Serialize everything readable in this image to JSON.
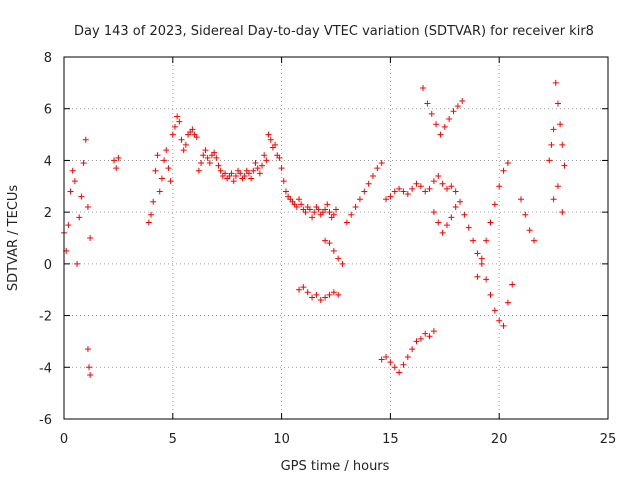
{
  "chart_data": {
    "type": "scatter",
    "title": "Day 143 of 2023, Sidereal Day-to-day VTEC variation (SDTVAR) for receiver kir8",
    "xlabel": "GPS time / hours",
    "ylabel": "SDTVAR / TECUs",
    "xlim": [
      0,
      25
    ],
    "ylim": [
      -6,
      8
    ],
    "x_ticks": [
      0,
      5,
      10,
      15,
      20,
      25
    ],
    "y_ticks": [
      -6,
      -4,
      -2,
      0,
      2,
      4,
      6,
      8
    ],
    "x_tick_labels": [
      "0",
      "5",
      "10",
      "15",
      "20",
      "25"
    ],
    "y_tick_labels": [
      "-6",
      "-4",
      "-2",
      "0",
      "2",
      "4",
      "6",
      "8"
    ],
    "grid": true,
    "marker": "+",
    "series_color": "#ff0000",
    "series": [
      {
        "name": "SDTVAR",
        "x": [
          0.0,
          0.1,
          0.2,
          0.3,
          0.4,
          0.5,
          0.6,
          0.7,
          0.8,
          0.9,
          1.0,
          1.1,
          1.2,
          1.1,
          1.15,
          1.2,
          2.3,
          2.4,
          2.5,
          3.9,
          4.0,
          4.1,
          4.2,
          4.3,
          4.4,
          4.5,
          4.6,
          4.7,
          4.8,
          4.9,
          5.0,
          5.1,
          5.2,
          5.3,
          5.4,
          5.5,
          5.6,
          5.7,
          5.8,
          5.9,
          6.0,
          6.1,
          6.2,
          6.3,
          6.4,
          6.5,
          6.6,
          6.7,
          6.8,
          6.9,
          7.0,
          7.1,
          7.2,
          7.3,
          7.4,
          7.5,
          7.6,
          7.7,
          7.8,
          7.9,
          8.0,
          8.1,
          8.2,
          8.3,
          8.4,
          8.5,
          8.6,
          8.7,
          8.8,
          8.9,
          9.0,
          9.1,
          9.2,
          9.3,
          9.4,
          9.5,
          9.6,
          9.7,
          9.8,
          9.9,
          10.0,
          10.1,
          10.2,
          10.3,
          10.4,
          10.5,
          10.6,
          10.7,
          10.8,
          10.9,
          11.0,
          11.1,
          11.2,
          11.3,
          11.4,
          11.5,
          11.6,
          11.7,
          11.8,
          11.9,
          12.0,
          12.1,
          12.2,
          12.3,
          12.4,
          12.5,
          10.8,
          11.0,
          11.2,
          11.4,
          11.6,
          11.8,
          12.0,
          12.2,
          12.4,
          12.6,
          12.0,
          12.2,
          12.4,
          12.6,
          12.8,
          13.0,
          13.2,
          13.4,
          13.6,
          13.8,
          14.0,
          14.2,
          14.4,
          14.6,
          14.8,
          15.0,
          15.2,
          15.4,
          15.6,
          15.8,
          16.0,
          16.2,
          16.4,
          16.6,
          16.8,
          17.0,
          17.2,
          17.4,
          17.6,
          17.8,
          18.0,
          14.6,
          14.8,
          15.0,
          15.2,
          15.4,
          15.6,
          15.8,
          16.0,
          16.2,
          16.4,
          16.6,
          16.8,
          17.0,
          16.5,
          16.7,
          16.9,
          17.1,
          17.3,
          17.5,
          17.7,
          17.9,
          18.1,
          18.3,
          17.0,
          17.2,
          17.4,
          17.6,
          17.8,
          18.0,
          18.2,
          18.4,
          18.6,
          18.8,
          19.0,
          19.2,
          19.4,
          19.6,
          19.8,
          20.0,
          20.2,
          20.4,
          20.6,
          19.0,
          19.2,
          19.4,
          19.6,
          19.8,
          20.0,
          20.2,
          20.4,
          21.0,
          21.2,
          21.4,
          21.6,
          22.3,
          22.4,
          22.5,
          22.6,
          22.7,
          22.8,
          22.9,
          23.0,
          22.5,
          22.7,
          22.9
        ],
        "y": [
          1.2,
          0.5,
          1.5,
          2.8,
          3.6,
          3.2,
          0.0,
          1.8,
          2.6,
          3.9,
          4.8,
          2.2,
          1.0,
          -3.3,
          -4.0,
          -4.3,
          4.0,
          3.7,
          4.1,
          1.6,
          1.9,
          2.4,
          3.6,
          4.2,
          2.8,
          3.3,
          4.0,
          4.4,
          3.7,
          3.2,
          5.0,
          5.3,
          5.7,
          5.5,
          4.8,
          4.4,
          4.6,
          5.0,
          5.1,
          5.2,
          5.0,
          4.9,
          3.6,
          3.9,
          4.2,
          4.4,
          4.1,
          3.9,
          4.2,
          4.3,
          4.1,
          3.8,
          3.6,
          3.4,
          3.5,
          3.3,
          3.4,
          3.5,
          3.2,
          3.4,
          3.6,
          3.5,
          3.3,
          3.4,
          3.6,
          3.5,
          3.3,
          3.6,
          3.9,
          3.7,
          3.5,
          3.8,
          4.2,
          4.0,
          5.0,
          4.8,
          4.5,
          4.6,
          4.2,
          4.1,
          3.7,
          3.2,
          2.8,
          2.6,
          2.5,
          2.4,
          2.3,
          2.2,
          2.5,
          2.3,
          2.1,
          2.0,
          2.2,
          2.1,
          1.8,
          2.0,
          2.2,
          2.1,
          1.9,
          2.0,
          2.1,
          2.3,
          2.0,
          1.8,
          1.9,
          2.1,
          -1.0,
          -0.9,
          -1.1,
          -1.3,
          -1.2,
          -1.4,
          -1.3,
          -1.2,
          -1.1,
          -1.2,
          0.9,
          0.8,
          0.5,
          0.2,
          0.0,
          1.6,
          1.9,
          2.2,
          2.5,
          2.8,
          3.1,
          3.4,
          3.7,
          3.9,
          2.5,
          2.6,
          2.8,
          2.9,
          2.8,
          2.7,
          2.9,
          3.1,
          3.0,
          2.8,
          2.9,
          3.2,
          3.4,
          3.1,
          2.9,
          3.0,
          2.8,
          -3.7,
          -3.6,
          -3.8,
          -4.0,
          -4.2,
          -3.9,
          -3.6,
          -3.3,
          -3.0,
          -2.9,
          -2.7,
          -2.8,
          -2.6,
          6.8,
          6.2,
          5.8,
          5.4,
          5.0,
          5.3,
          5.6,
          5.9,
          6.1,
          6.3,
          2.0,
          1.6,
          1.2,
          1.5,
          1.8,
          2.2,
          2.4,
          1.9,
          1.4,
          0.9,
          0.4,
          0.0,
          -0.6,
          -1.2,
          -1.8,
          -2.2,
          -2.4,
          -1.5,
          -0.8,
          -0.5,
          0.2,
          0.9,
          1.6,
          2.3,
          3.0,
          3.6,
          3.9,
          2.5,
          1.9,
          1.3,
          0.9,
          4.0,
          4.6,
          5.2,
          7.0,
          6.2,
          5.4,
          4.6,
          3.8,
          2.5,
          3.0,
          2.0
        ]
      }
    ]
  }
}
